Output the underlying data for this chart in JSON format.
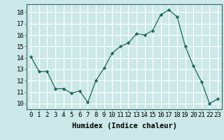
{
  "x": [
    0,
    1,
    2,
    3,
    4,
    5,
    6,
    7,
    8,
    9,
    10,
    11,
    12,
    13,
    14,
    15,
    16,
    17,
    18,
    19,
    20,
    21,
    22,
    23
  ],
  "y": [
    14.1,
    12.8,
    12.8,
    11.3,
    11.3,
    10.9,
    11.1,
    10.1,
    12.0,
    13.1,
    14.4,
    15.0,
    15.3,
    16.1,
    16.0,
    16.4,
    17.8,
    18.2,
    17.6,
    15.0,
    13.3,
    11.9,
    10.0,
    10.4
  ],
  "line_color": "#1a6b5a",
  "marker": "D",
  "marker_size": 2.2,
  "bg_color": "#cce8e8",
  "grid_color": "#ffffff",
  "xlabel": "Humidex (Indice chaleur)",
  "xlim": [
    -0.5,
    23.5
  ],
  "ylim": [
    9.5,
    18.7
  ],
  "yticks": [
    10,
    11,
    12,
    13,
    14,
    15,
    16,
    17,
    18
  ],
  "xticks": [
    0,
    1,
    2,
    3,
    4,
    5,
    6,
    7,
    8,
    9,
    10,
    11,
    12,
    13,
    14,
    15,
    16,
    17,
    18,
    19,
    20,
    21,
    22,
    23
  ],
  "tick_fontsize": 6.5,
  "xlabel_fontsize": 7.5
}
